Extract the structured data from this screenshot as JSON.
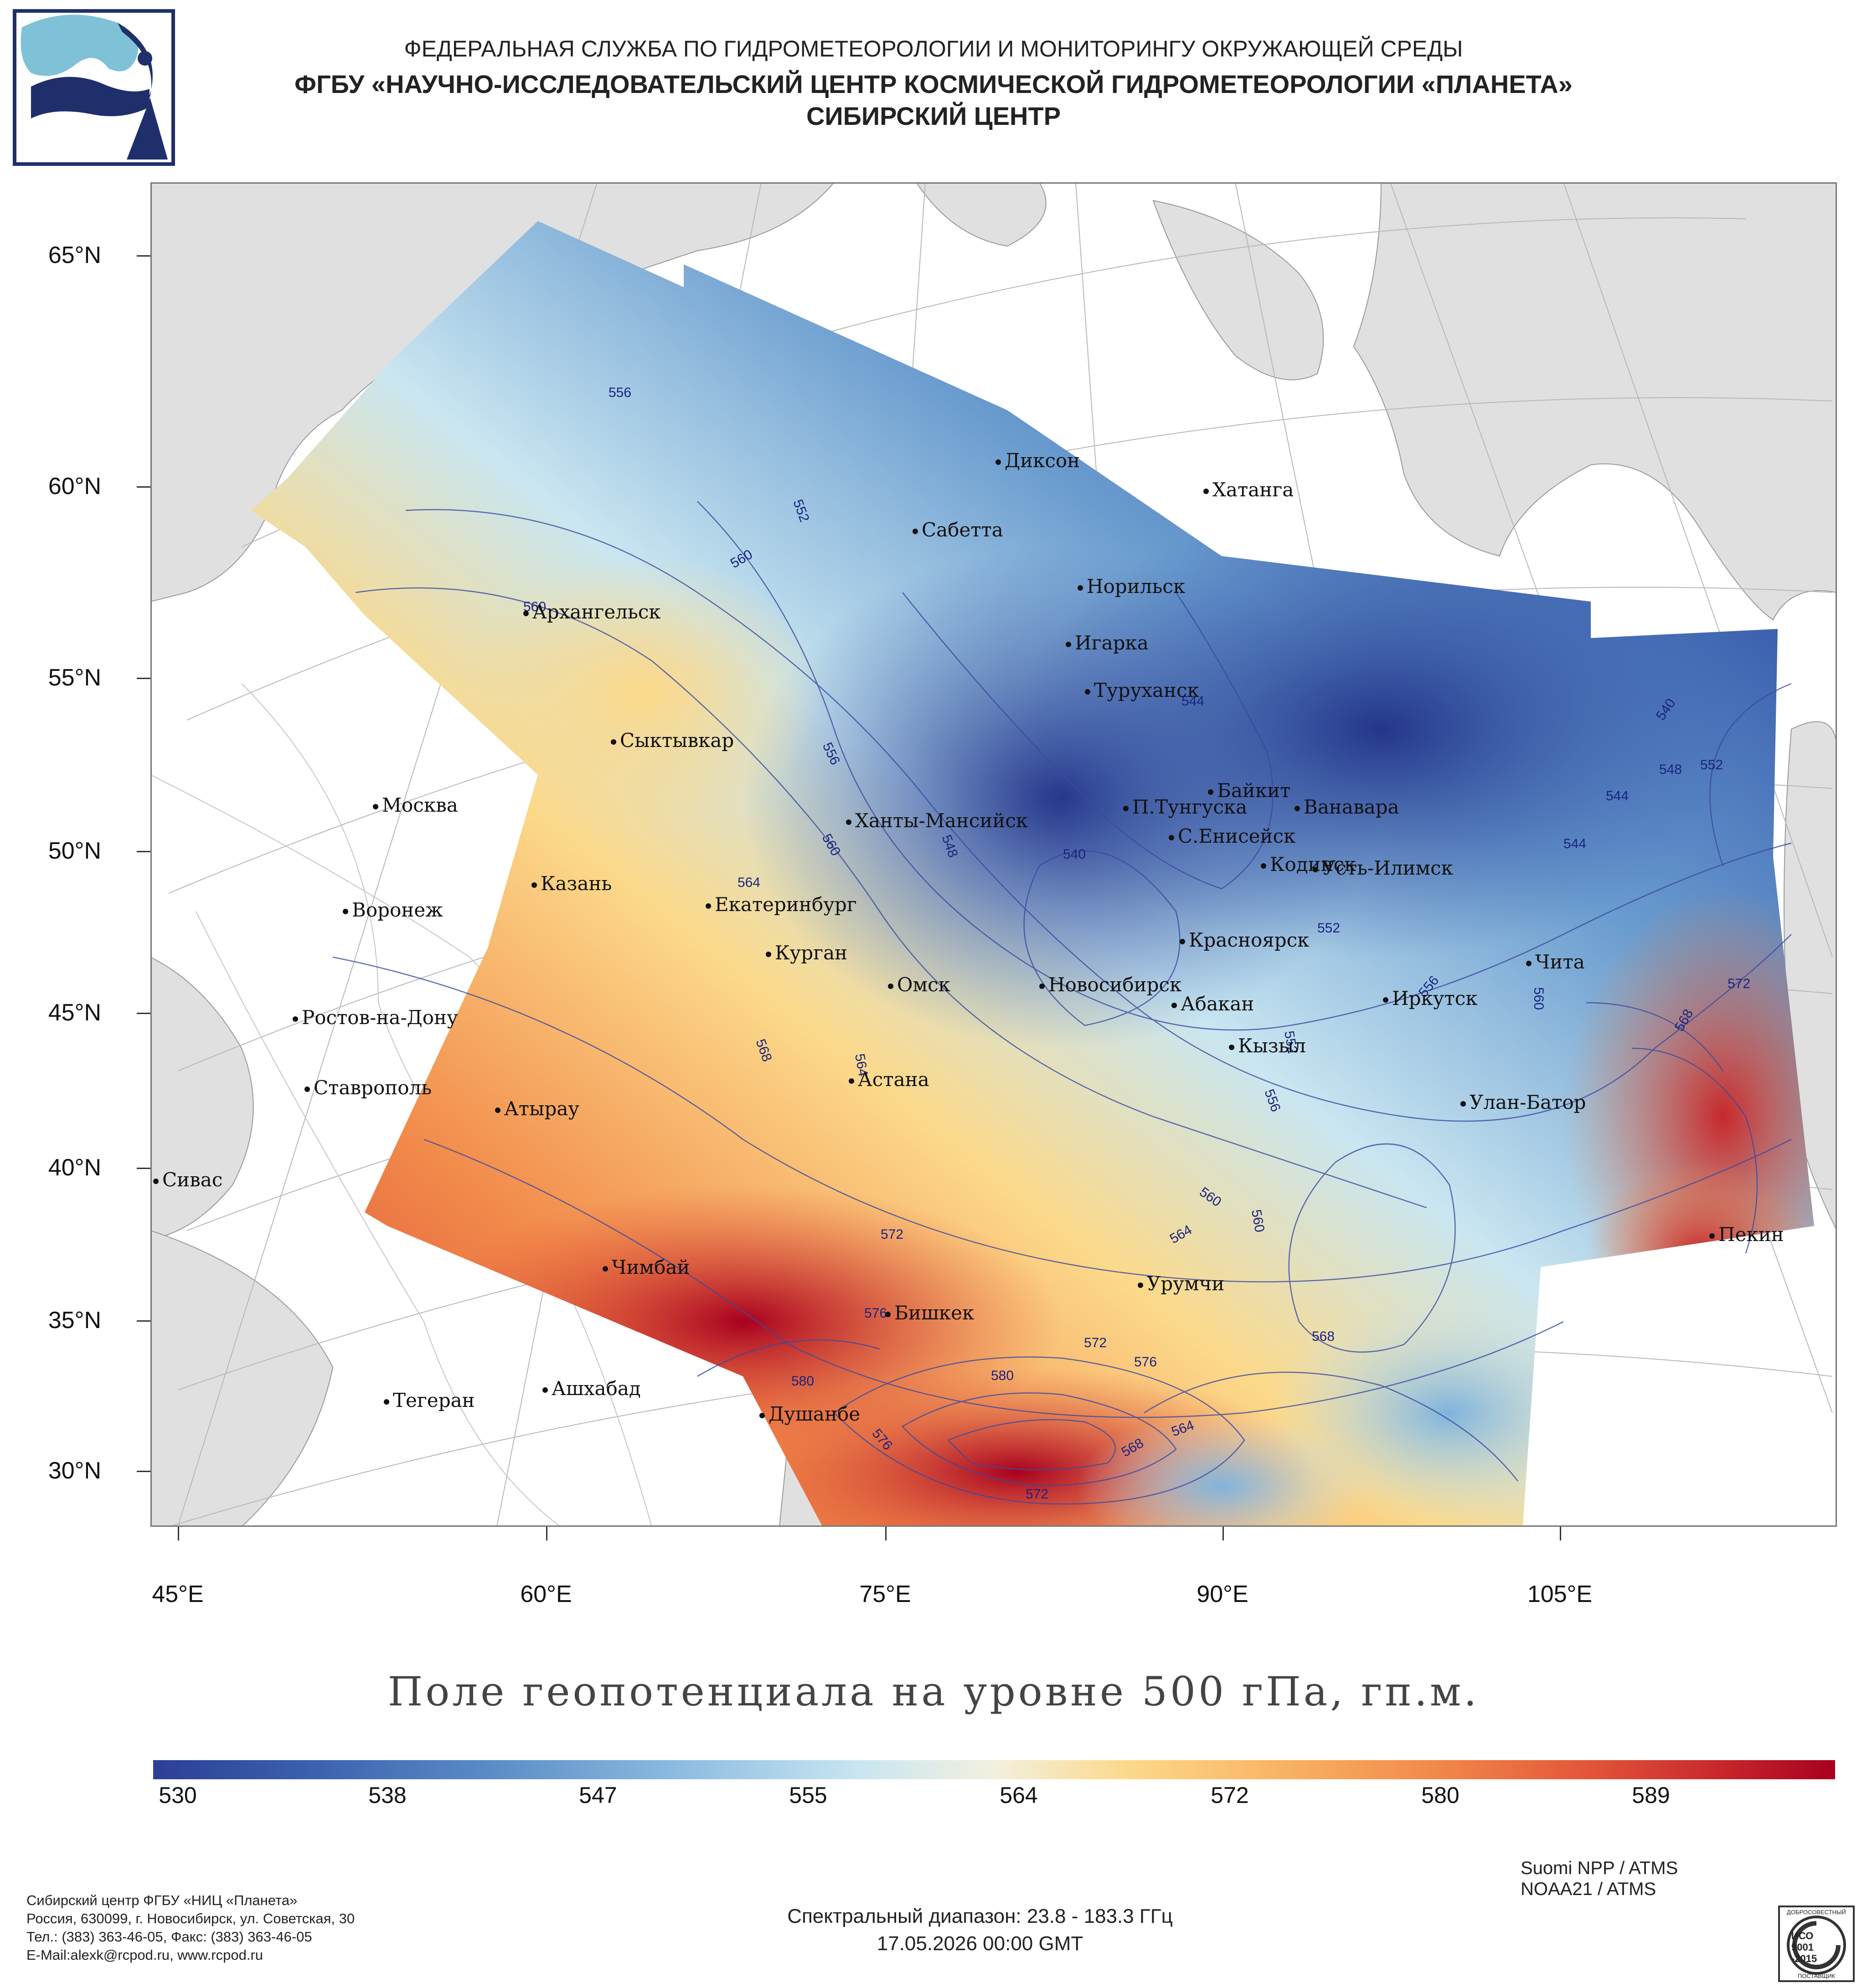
{
  "header": {
    "line1": "ФЕДЕРАЛЬНАЯ СЛУЖБА ПО ГИДРОМЕТЕОРОЛОГИИ И МОНИТОРИНГУ ОКРУЖАЮЩЕЙ СРЕДЫ",
    "line2": "ФГБУ «НАУЧНО-ИССЛЕДОВАТЕЛЬСКИЙ ЦЕНТР КОСМИЧЕСКОЙ ГИДРОМЕТЕОРОЛОГИИ «ПЛАНЕТА»",
    "line3": "СИБИРСКИЙ ЦЕНТР"
  },
  "map": {
    "lat_labels": [
      "65°N",
      "60°N",
      "55°N",
      "50°N",
      "45°N",
      "40°N",
      "35°N",
      "30°N"
    ],
    "lon_labels": [
      "45°E",
      "60°E",
      "75°E",
      "90°E",
      "105°E"
    ],
    "cities": [
      "Диксон",
      "Хатанга",
      "Сабетта",
      "Норильск",
      "Игарка",
      "Архангельск",
      "Туруханск",
      "Сыктывкар",
      "Москва",
      "Байкит",
      "П.Тунгуска",
      "Ванавара",
      "Ханты-Мансийск",
      "С.Енисейск",
      "Кодинск",
      "Усть-Илимск",
      "Казань",
      "Екатеринбург",
      "Воронеж",
      "Красноярск",
      "Курган",
      "Чита",
      "Омск",
      "Новосибирск",
      "Ростов-на-Дону",
      "Иркутск",
      "Абакан",
      "Кызыл",
      "Астана",
      "Ставрополь",
      "Улан-Батор",
      "Атырау",
      "Сивас",
      "Пекин",
      "Чимбай",
      "Урумчи",
      "Бишкек",
      "Ашхабад",
      "Тегеран",
      "Душанбе"
    ],
    "contour_labels": [
      "556",
      "552",
      "560",
      "560",
      "544",
      "556",
      "540",
      "548",
      "544",
      "552",
      "560",
      "564",
      "540",
      "548",
      "552",
      "544",
      "556",
      "552",
      "556",
      "560",
      "568",
      "564",
      "572",
      "568",
      "560",
      "564",
      "560",
      "572",
      "576",
      "568",
      "580",
      "580",
      "572",
      "576",
      "576",
      "564",
      "568",
      "572"
    ]
  },
  "title": "Поле геопотенциала на уровне 500 гПа, гп.м.",
  "colorbar": {
    "ticks": [
      "530",
      "538",
      "547",
      "555",
      "564",
      "572",
      "580",
      "589"
    ],
    "colors": [
      "#2c3f96",
      "#3a5fae",
      "#5a8cc6",
      "#8bbbe0",
      "#c9e6f1",
      "#f3f0df",
      "#fcd98a",
      "#f9b463",
      "#f28a4a",
      "#e4573a",
      "#c8282c",
      "#a8001f"
    ]
  },
  "footer": {
    "org_lines": [
      "Сибирский центр ФГБУ «НИЦ «Планета»",
      "Россия, 630099, г. Новосибирск, ул. Советская, 30",
      "Тел.: (383) 363-46-05, Факс: (383) 363-46-05",
      "E-Mail:alexk@rcpod.ru, www.rcpod.ru"
    ],
    "satellites": [
      "Suomi NPP / ATMS",
      "NOAA21 / ATMS"
    ],
    "spectral": "Спектральный диапазон: 23.8 - 183.3 ГГц",
    "datetime": "17.05.2026 00:00 GMT",
    "iso_badge": [
      "ДОБРОСОВЕСТНЫЙ",
      "ИСО",
      "9001",
      "-2015",
      "ПОСТАВЩИК"
    ]
  }
}
